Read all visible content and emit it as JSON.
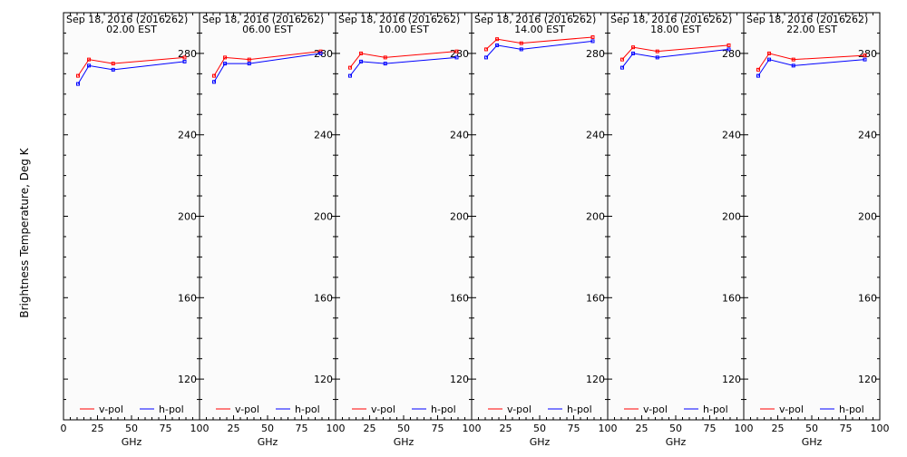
{
  "ylabel": "Brightness Temperature, Deg K",
  "colors": {
    "v": "#ff0000",
    "h": "#0000ff",
    "background": "#fbfbfb",
    "axes": "#000000"
  },
  "chart_data": [
    {
      "type": "line",
      "title": "Sep 18, 2016 (2016262)",
      "subtitle": "02.00 EST",
      "xlabel": "GHz",
      "ylabel": "Brightness Temperature, Deg K",
      "xlim": [
        0,
        100
      ],
      "ylim": [
        100,
        300
      ],
      "xticks": [
        "0",
        "25",
        "50",
        "75",
        "100"
      ],
      "yticks": [
        "120",
        "160",
        "200",
        "240",
        "280"
      ],
      "legend_position": "bottom",
      "x": [
        10.65,
        18.7,
        36.5,
        89.0
      ],
      "series": [
        {
          "name": "v-pol",
          "values": [
            269,
            277,
            275,
            278
          ]
        },
        {
          "name": "h-pol",
          "values": [
            265,
            274,
            272,
            276
          ]
        }
      ]
    },
    {
      "type": "line",
      "title": "Sep 18, 2016 (2016262)",
      "subtitle": "06.00 EST",
      "xlabel": "GHz",
      "ylabel": "",
      "xlim": [
        0,
        100
      ],
      "ylim": [
        100,
        300
      ],
      "xticks": [
        "",
        "25",
        "50",
        "75",
        "100"
      ],
      "yticks": [
        "120",
        "160",
        "200",
        "240",
        "280"
      ],
      "legend_position": "bottom",
      "x": [
        10.65,
        18.7,
        36.5,
        89.0
      ],
      "series": [
        {
          "name": "v-pol",
          "values": [
            269,
            278,
            277,
            281
          ]
        },
        {
          "name": "h-pol",
          "values": [
            266,
            275,
            275,
            280
          ]
        }
      ]
    },
    {
      "type": "line",
      "title": "Sep 18, 2016 (2016262)",
      "subtitle": "10.00 EST",
      "xlabel": "GHz",
      "ylabel": "",
      "xlim": [
        0,
        100
      ],
      "ylim": [
        100,
        300
      ],
      "xticks": [
        "",
        "25",
        "50",
        "75",
        "100"
      ],
      "yticks": [
        "120",
        "160",
        "200",
        "240",
        "280"
      ],
      "legend_position": "bottom",
      "x": [
        10.65,
        18.7,
        36.5,
        89.0
      ],
      "series": [
        {
          "name": "v-pol",
          "values": [
            273,
            280,
            278,
            281
          ]
        },
        {
          "name": "h-pol",
          "values": [
            269,
            276,
            275,
            278
          ]
        }
      ]
    },
    {
      "type": "line",
      "title": "Sep 18, 2016 (2016262)",
      "subtitle": "14.00 EST",
      "xlabel": "GHz",
      "ylabel": "",
      "xlim": [
        0,
        100
      ],
      "ylim": [
        100,
        300
      ],
      "xticks": [
        "",
        "25",
        "50",
        "75",
        "100"
      ],
      "yticks": [
        "120",
        "160",
        "200",
        "240",
        "280"
      ],
      "legend_position": "bottom",
      "x": [
        10.65,
        18.7,
        36.5,
        89.0
      ],
      "series": [
        {
          "name": "v-pol",
          "values": [
            282,
            287,
            285,
            288
          ]
        },
        {
          "name": "h-pol",
          "values": [
            278,
            284,
            282,
            286
          ]
        }
      ]
    },
    {
      "type": "line",
      "title": "Sep 18, 2016 (2016262)",
      "subtitle": "18.00 EST",
      "xlabel": "GHz",
      "ylabel": "",
      "xlim": [
        0,
        100
      ],
      "ylim": [
        100,
        300
      ],
      "xticks": [
        "",
        "25",
        "50",
        "75",
        "100"
      ],
      "yticks": [
        "120",
        "160",
        "200",
        "240",
        "280"
      ],
      "legend_position": "bottom",
      "x": [
        10.65,
        18.7,
        36.5,
        89.0
      ],
      "series": [
        {
          "name": "v-pol",
          "values": [
            277,
            283,
            281,
            284
          ]
        },
        {
          "name": "h-pol",
          "values": [
            273,
            280,
            278,
            282
          ]
        }
      ]
    },
    {
      "type": "line",
      "title": "Sep 18, 2016 (2016262)",
      "subtitle": "22.00 EST",
      "xlabel": "GHz",
      "ylabel": "",
      "xlim": [
        0,
        100
      ],
      "ylim": [
        100,
        300
      ],
      "xticks": [
        "",
        "25",
        "50",
        "75",
        "100"
      ],
      "yticks": [
        "120",
        "160",
        "200",
        "240",
        "280"
      ],
      "legend_position": "bottom",
      "x": [
        10.65,
        18.7,
        36.5,
        89.0
      ],
      "series": [
        {
          "name": "v-pol",
          "values": [
            272,
            280,
            277,
            279
          ]
        },
        {
          "name": "h-pol",
          "values": [
            269,
            277,
            274,
            277
          ]
        }
      ]
    }
  ]
}
